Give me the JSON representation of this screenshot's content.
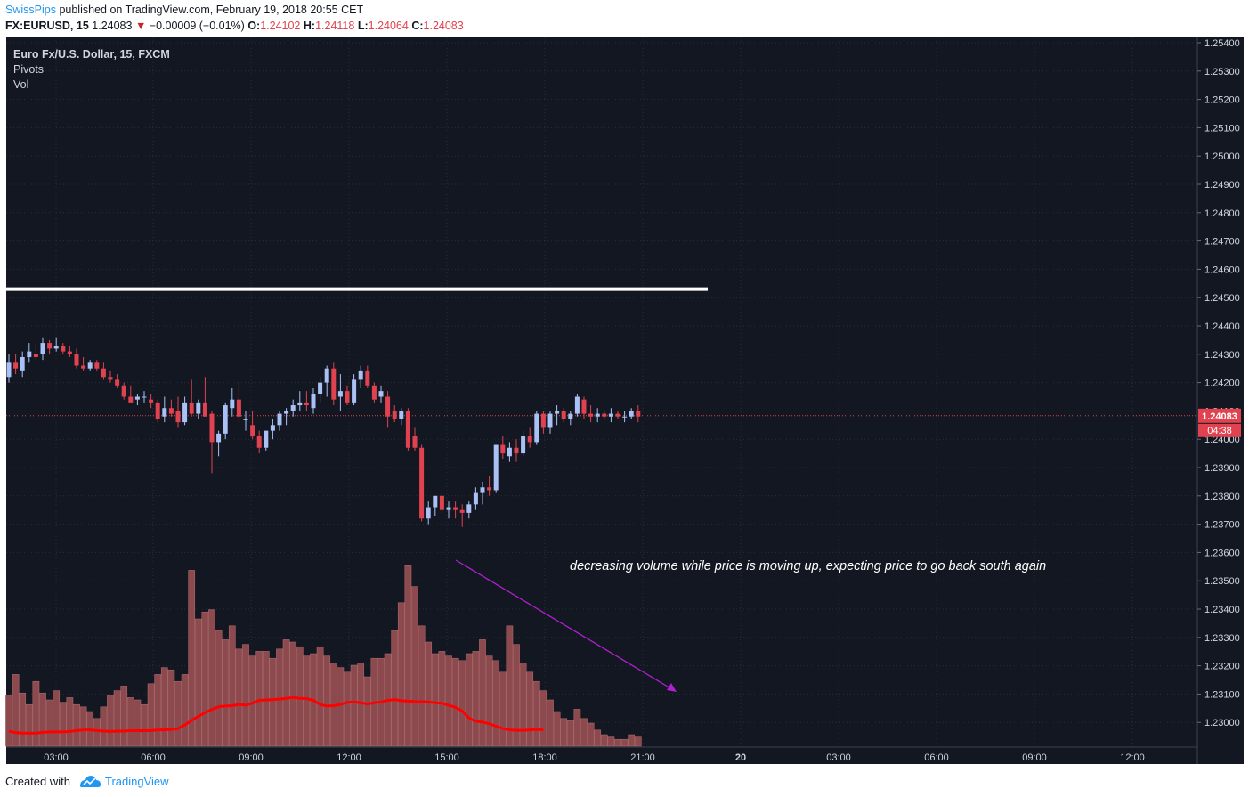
{
  "header": {
    "author": "SwissPips",
    "published": "published on TradingView.com, February 19, 2018 20:55 CET",
    "symbol": "FX:EURUSD, 15",
    "last": "1.24083",
    "change_arrow": "▼",
    "change": "−0.00009 (−0.01%)",
    "o_label": "O:",
    "o": "1.24102",
    "h_label": "H:",
    "h": "1.24118",
    "l_label": "L:",
    "l": "1.24064",
    "c_label": "C:",
    "c": "1.24083"
  },
  "legend": {
    "title": "Euro Fx/U.S. Dollar, 15, FXCM",
    "pivots": "Pivots",
    "vol": "Vol"
  },
  "annotation": "decreasing volume while price is moving up, expecting price to go back south again",
  "price_tag": "1.24083",
  "countdown_tag": "04:38",
  "footer": {
    "created_with": "Created with",
    "brand": "TradingView"
  },
  "colors": {
    "background": "#131722",
    "up": "#a9c1f5",
    "down": "#e0424f",
    "volume": "#8d4a4e",
    "volume_ma": "#ff0000",
    "pivot_line": "#ffffff",
    "arrow": "#b020d0",
    "grid": "#2a2e39",
    "axis_text": "#d1d4dc"
  },
  "chart_data": {
    "type": "candlestick",
    "title": "Euro Fx/U.S. Dollar, 15, FXCM",
    "y_axis": {
      "side": "right",
      "range": [
        1.2294,
        1.2545
      ],
      "ticks": [
        "1.25400",
        "1.25300",
        "1.25200",
        "1.25100",
        "1.25000",
        "1.24900",
        "1.24800",
        "1.24700",
        "1.24600",
        "1.24500",
        "1.24400",
        "1.24300",
        "1.24200",
        "1.24100",
        "1.24000",
        "1.23900",
        "1.23800",
        "1.23700",
        "1.23600",
        "1.23500",
        "1.23400",
        "1.23300",
        "1.23200",
        "1.23100",
        "1.23000"
      ]
    },
    "x_axis": {
      "ticks": [
        "03:00",
        "06:00",
        "09:00",
        "12:00",
        "15:00",
        "18:00",
        "21:00",
        "20",
        "03:00",
        "06:00",
        "09:00",
        "12:00"
      ]
    },
    "pivot_level": 1.2453,
    "last_price": 1.24083,
    "candles": [
      {
        "o": 1.2422,
        "h": 1.243,
        "l": 1.242,
        "c": 1.2427
      },
      {
        "o": 1.2427,
        "h": 1.243,
        "l": 1.2423,
        "c": 1.2425
      },
      {
        "o": 1.2424,
        "h": 1.2431,
        "l": 1.2422,
        "c": 1.2429
      },
      {
        "o": 1.2429,
        "h": 1.2434,
        "l": 1.2427,
        "c": 1.2431
      },
      {
        "o": 1.243,
        "h": 1.2434,
        "l": 1.2428,
        "c": 1.2429
      },
      {
        "o": 1.243,
        "h": 1.2436,
        "l": 1.2428,
        "c": 1.2434
      },
      {
        "o": 1.2434,
        "h": 1.2435,
        "l": 1.243,
        "c": 1.2432
      },
      {
        "o": 1.2432,
        "h": 1.2436,
        "l": 1.2431,
        "c": 1.2433
      },
      {
        "o": 1.2433,
        "h": 1.2434,
        "l": 1.243,
        "c": 1.2431
      },
      {
        "o": 1.2431,
        "h": 1.2433,
        "l": 1.2429,
        "c": 1.243
      },
      {
        "o": 1.243,
        "h": 1.2432,
        "l": 1.2425,
        "c": 1.2426
      },
      {
        "o": 1.2426,
        "h": 1.2429,
        "l": 1.2424,
        "c": 1.2425
      },
      {
        "o": 1.2425,
        "h": 1.2428,
        "l": 1.2424,
        "c": 1.2427
      },
      {
        "o": 1.2427,
        "h": 1.2428,
        "l": 1.2424,
        "c": 1.2425
      },
      {
        "o": 1.2425,
        "h": 1.2427,
        "l": 1.2421,
        "c": 1.2422
      },
      {
        "o": 1.2422,
        "h": 1.2424,
        "l": 1.242,
        "c": 1.2421
      },
      {
        "o": 1.2421,
        "h": 1.2423,
        "l": 1.2418,
        "c": 1.2419
      },
      {
        "o": 1.2419,
        "h": 1.242,
        "l": 1.2414,
        "c": 1.2415
      },
      {
        "o": 1.2415,
        "h": 1.2419,
        "l": 1.2413,
        "c": 1.2413
      },
      {
        "o": 1.2414,
        "h": 1.2416,
        "l": 1.2412,
        "c": 1.2415
      },
      {
        "o": 1.2415,
        "h": 1.2417,
        "l": 1.2413,
        "c": 1.2415
      },
      {
        "o": 1.2414,
        "h": 1.2416,
        "l": 1.2411,
        "c": 1.2413
      },
      {
        "o": 1.2413,
        "h": 1.2414,
        "l": 1.2406,
        "c": 1.2407
      },
      {
        "o": 1.2408,
        "h": 1.2415,
        "l": 1.2406,
        "c": 1.2411
      },
      {
        "o": 1.2411,
        "h": 1.2414,
        "l": 1.2408,
        "c": 1.2409
      },
      {
        "o": 1.241,
        "h": 1.2415,
        "l": 1.2404,
        "c": 1.2406
      },
      {
        "o": 1.2406,
        "h": 1.2415,
        "l": 1.2405,
        "c": 1.2413
      },
      {
        "o": 1.2413,
        "h": 1.2421,
        "l": 1.2408,
        "c": 1.2409
      },
      {
        "o": 1.2409,
        "h": 1.2414,
        "l": 1.2407,
        "c": 1.2413
      },
      {
        "o": 1.2413,
        "h": 1.2422,
        "l": 1.2408,
        "c": 1.2408
      },
      {
        "o": 1.2409,
        "h": 1.241,
        "l": 1.2388,
        "c": 1.2399
      },
      {
        "o": 1.2399,
        "h": 1.2403,
        "l": 1.2394,
        "c": 1.2402
      },
      {
        "o": 1.2402,
        "h": 1.2413,
        "l": 1.24,
        "c": 1.2412
      },
      {
        "o": 1.2411,
        "h": 1.2418,
        "l": 1.2408,
        "c": 1.2414
      },
      {
        "o": 1.2414,
        "h": 1.242,
        "l": 1.2406,
        "c": 1.2408
      },
      {
        "o": 1.2407,
        "h": 1.241,
        "l": 1.2403,
        "c": 1.2407
      },
      {
        "o": 1.2405,
        "h": 1.241,
        "l": 1.24,
        "c": 1.2401
      },
      {
        "o": 1.2401,
        "h": 1.2403,
        "l": 1.2395,
        "c": 1.2397
      },
      {
        "o": 1.2397,
        "h": 1.2403,
        "l": 1.2396,
        "c": 1.2403
      },
      {
        "o": 1.2403,
        "h": 1.2407,
        "l": 1.24,
        "c": 1.2405
      },
      {
        "o": 1.2405,
        "h": 1.241,
        "l": 1.2403,
        "c": 1.2409
      },
      {
        "o": 1.2409,
        "h": 1.2411,
        "l": 1.2405,
        "c": 1.241
      },
      {
        "o": 1.241,
        "h": 1.2414,
        "l": 1.2408,
        "c": 1.2412
      },
      {
        "o": 1.2412,
        "h": 1.2417,
        "l": 1.241,
        "c": 1.2413
      },
      {
        "o": 1.2413,
        "h": 1.2417,
        "l": 1.241,
        "c": 1.2412
      },
      {
        "o": 1.2411,
        "h": 1.2418,
        "l": 1.2409,
        "c": 1.2416
      },
      {
        "o": 1.2416,
        "h": 1.2422,
        "l": 1.2413,
        "c": 1.242
      },
      {
        "o": 1.242,
        "h": 1.2426,
        "l": 1.2415,
        "c": 1.2425
      },
      {
        "o": 1.2425,
        "h": 1.2427,
        "l": 1.2412,
        "c": 1.2414
      },
      {
        "o": 1.2415,
        "h": 1.2423,
        "l": 1.241,
        "c": 1.2417
      },
      {
        "o": 1.2417,
        "h": 1.2419,
        "l": 1.2412,
        "c": 1.2413
      },
      {
        "o": 1.2413,
        "h": 1.2423,
        "l": 1.2412,
        "c": 1.2421
      },
      {
        "o": 1.2421,
        "h": 1.2426,
        "l": 1.2418,
        "c": 1.2424
      },
      {
        "o": 1.2424,
        "h": 1.2426,
        "l": 1.2418,
        "c": 1.2419
      },
      {
        "o": 1.2419,
        "h": 1.242,
        "l": 1.2413,
        "c": 1.2414
      },
      {
        "o": 1.2415,
        "h": 1.2419,
        "l": 1.2413,
        "c": 1.2417
      },
      {
        "o": 1.2415,
        "h": 1.2417,
        "l": 1.2404,
        "c": 1.2408
      },
      {
        "o": 1.241,
        "h": 1.2412,
        "l": 1.2406,
        "c": 1.2407
      },
      {
        "o": 1.2407,
        "h": 1.2411,
        "l": 1.2405,
        "c": 1.241
      },
      {
        "o": 1.241,
        "h": 1.2411,
        "l": 1.2396,
        "c": 1.2397
      },
      {
        "o": 1.2401,
        "h": 1.2404,
        "l": 1.2396,
        "c": 1.2397
      },
      {
        "o": 1.2397,
        "h": 1.2398,
        "l": 1.2371,
        "c": 1.2372
      },
      {
        "o": 1.2372,
        "h": 1.2378,
        "l": 1.237,
        "c": 1.2376
      },
      {
        "o": 1.2376,
        "h": 1.238,
        "l": 1.2373,
        "c": 1.238
      },
      {
        "o": 1.238,
        "h": 1.2381,
        "l": 1.2374,
        "c": 1.2375
      },
      {
        "o": 1.2375,
        "h": 1.2378,
        "l": 1.2372,
        "c": 1.2376
      },
      {
        "o": 1.2376,
        "h": 1.2378,
        "l": 1.2372,
        "c": 1.2375
      },
      {
        "o": 1.2375,
        "h": 1.2377,
        "l": 1.2369,
        "c": 1.2374
      },
      {
        "o": 1.2374,
        "h": 1.2378,
        "l": 1.2372,
        "c": 1.2377
      },
      {
        "o": 1.2377,
        "h": 1.2383,
        "l": 1.2375,
        "c": 1.2381
      },
      {
        "o": 1.2381,
        "h": 1.2385,
        "l": 1.2377,
        "c": 1.2383
      },
      {
        "o": 1.2383,
        "h": 1.2387,
        "l": 1.238,
        "c": 1.2382
      },
      {
        "o": 1.2382,
        "h": 1.2398,
        "l": 1.2381,
        "c": 1.2398
      },
      {
        "o": 1.2398,
        "h": 1.2401,
        "l": 1.2393,
        "c": 1.2395
      },
      {
        "o": 1.2394,
        "h": 1.2399,
        "l": 1.2392,
        "c": 1.2397
      },
      {
        "o": 1.2397,
        "h": 1.24,
        "l": 1.2392,
        "c": 1.2395
      },
      {
        "o": 1.2395,
        "h": 1.2403,
        "l": 1.2394,
        "c": 1.2401
      },
      {
        "o": 1.2401,
        "h": 1.2404,
        "l": 1.2397,
        "c": 1.2399
      },
      {
        "o": 1.2399,
        "h": 1.241,
        "l": 1.2398,
        "c": 1.2409
      },
      {
        "o": 1.2409,
        "h": 1.241,
        "l": 1.2402,
        "c": 1.2404
      },
      {
        "o": 1.2404,
        "h": 1.241,
        "l": 1.2402,
        "c": 1.2409
      },
      {
        "o": 1.2409,
        "h": 1.2412,
        "l": 1.2405,
        "c": 1.241
      },
      {
        "o": 1.241,
        "h": 1.2411,
        "l": 1.2406,
        "c": 1.2407
      },
      {
        "o": 1.2407,
        "h": 1.241,
        "l": 1.2405,
        "c": 1.2409
      },
      {
        "o": 1.2409,
        "h": 1.2416,
        "l": 1.2408,
        "c": 1.2415
      },
      {
        "o": 1.2414,
        "h": 1.2415,
        "l": 1.2407,
        "c": 1.2409
      },
      {
        "o": 1.2409,
        "h": 1.2412,
        "l": 1.2406,
        "c": 1.2408
      },
      {
        "o": 1.2408,
        "h": 1.2411,
        "l": 1.2406,
        "c": 1.2409
      },
      {
        "o": 1.2409,
        "h": 1.241,
        "l": 1.2407,
        "c": 1.2408
      },
      {
        "o": 1.2408,
        "h": 1.2411,
        "l": 1.2406,
        "c": 1.2409
      },
      {
        "o": 1.2409,
        "h": 1.241,
        "l": 1.2407,
        "c": 1.2408
      },
      {
        "o": 1.2408,
        "h": 1.241,
        "l": 1.2406,
        "c": 1.2408
      },
      {
        "o": 1.2408,
        "h": 1.2411,
        "l": 1.2407,
        "c": 1.241
      },
      {
        "o": 1.241,
        "h": 1.2412,
        "l": 1.2406,
        "c": 1.2408
      }
    ],
    "volume": [
      22,
      31,
      23,
      18,
      28,
      23,
      20,
      24,
      19,
      21,
      18,
      17,
      15,
      12,
      17,
      22,
      24,
      26,
      21,
      20,
      18,
      27,
      31,
      34,
      33,
      28,
      31,
      76,
      55,
      58,
      59,
      50,
      46,
      52,
      42,
      44,
      39,
      41,
      41,
      38,
      42,
      46,
      45,
      43,
      39,
      40,
      43,
      39,
      36,
      34,
      32,
      35,
      36,
      30,
      38,
      38,
      40,
      50,
      62,
      78,
      69,
      52,
      45,
      40,
      41,
      39,
      38,
      37,
      40,
      41,
      46,
      39,
      37,
      32,
      52,
      44,
      36,
      32,
      28,
      24,
      20,
      15,
      12,
      11,
      16,
      12,
      10,
      7,
      5,
      4,
      3,
      3,
      5,
      4
    ],
    "volume_ma": [
      3.7,
      3.3,
      3.2,
      3.2,
      3.2,
      3.4,
      3.5,
      3.5,
      3.5,
      3.6,
      3.8,
      4.0,
      4.0,
      3.8,
      3.7,
      3.6,
      3.7,
      3.7,
      3.8,
      3.8,
      3.8,
      3.8,
      4.0,
      4.0,
      4.1,
      4.3,
      5.2,
      6.3,
      7.3,
      8.2,
      9.0,
      9.6,
      9.8,
      9.9,
      10.2,
      10.0,
      10.5,
      11.2,
      11.3,
      11.4,
      11.5,
      11.7,
      11.9,
      11.7,
      11.6,
      11.2,
      10.2,
      9.8,
      9.9,
      10.2,
      10.7,
      10.8,
      10.6,
      10.3,
      10.6,
      10.8,
      11.2,
      11.4,
      11.1,
      11.0,
      10.9,
      10.9,
      10.8,
      10.6,
      10.5,
      10.0,
      9.5,
      8.6,
      6.9,
      6.1,
      5.9,
      5.5,
      4.9,
      4.3,
      4.0,
      3.9,
      3.9,
      4.0,
      4.1,
      4.0
    ]
  }
}
